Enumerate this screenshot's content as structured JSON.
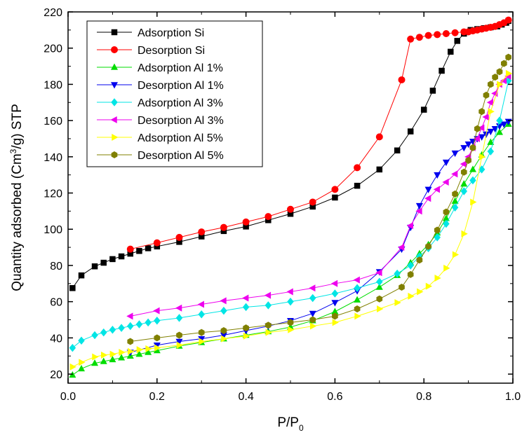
{
  "chart_data": {
    "type": "scatter",
    "title": "",
    "xlabel": {
      "main": "P/P",
      "sub": "0"
    },
    "ylabel": {
      "pre": "Quantity adsorbed (Cm",
      "sup": "3",
      "post": "/g) STP"
    },
    "xlim": [
      0.0,
      1.0
    ],
    "ylim": [
      15,
      220
    ],
    "xticks": [
      0.0,
      0.2,
      0.4,
      0.6,
      0.8,
      1.0
    ],
    "xtick_labels": [
      "0.0",
      "0.2",
      "0.4",
      "0.6",
      "0.8",
      "1.0"
    ],
    "yticks": [
      20,
      40,
      60,
      80,
      100,
      120,
      140,
      160,
      180,
      200,
      220
    ],
    "ytick_labels": [
      "20",
      "40",
      "60",
      "80",
      "100",
      "120",
      "140",
      "160",
      "180",
      "200",
      "220"
    ],
    "grid": false,
    "legend_position": "top-left",
    "series": [
      {
        "name": "Adsorption Si",
        "color": "#000000",
        "marker": "square",
        "x": [
          0.01,
          0.03,
          0.06,
          0.08,
          0.1,
          0.12,
          0.14,
          0.16,
          0.18,
          0.2,
          0.25,
          0.3,
          0.35,
          0.4,
          0.45,
          0.5,
          0.55,
          0.6,
          0.65,
          0.7,
          0.74,
          0.77,
          0.8,
          0.82,
          0.84,
          0.86,
          0.875,
          0.89,
          0.905,
          0.92,
          0.935,
          0.95,
          0.965,
          0.975,
          0.985,
          0.99
        ],
        "y": [
          67.5,
          74.5,
          79.5,
          81.5,
          83.5,
          85,
          86.5,
          88,
          89.5,
          90.5,
          93,
          96,
          99,
          101.5,
          105,
          108.5,
          112.5,
          117.5,
          124,
          133,
          143.5,
          154,
          166,
          176.5,
          187.5,
          198,
          204,
          208,
          210,
          210.5,
          211,
          211.5,
          212,
          213,
          214,
          215
        ]
      },
      {
        "name": "Desorption Si",
        "color": "#ff0000",
        "marker": "circle",
        "x": [
          0.99,
          0.98,
          0.97,
          0.96,
          0.95,
          0.94,
          0.93,
          0.92,
          0.91,
          0.9,
          0.89,
          0.87,
          0.85,
          0.83,
          0.81,
          0.79,
          0.77,
          0.75,
          0.7,
          0.65,
          0.6,
          0.55,
          0.5,
          0.45,
          0.4,
          0.35,
          0.3,
          0.25,
          0.2,
          0.14
        ],
        "y": [
          215.5,
          214,
          213,
          212,
          211.5,
          211,
          210.5,
          210,
          209.5,
          209,
          209,
          208.5,
          208,
          207.5,
          207,
          206,
          205,
          182.5,
          151,
          134,
          122,
          115,
          111,
          107,
          104,
          101,
          98.5,
          95.5,
          92.5,
          89
        ]
      },
      {
        "name": "Adsorption Al 1%",
        "color": "#00dd00",
        "marker": "triangle-up",
        "x": [
          0.01,
          0.03,
          0.06,
          0.08,
          0.1,
          0.12,
          0.14,
          0.16,
          0.18,
          0.2,
          0.25,
          0.3,
          0.35,
          0.4,
          0.45,
          0.5,
          0.55,
          0.6,
          0.65,
          0.7,
          0.74,
          0.77,
          0.79,
          0.81,
          0.83,
          0.85,
          0.87,
          0.89,
          0.91,
          0.93,
          0.95,
          0.97,
          0.99
        ],
        "y": [
          19.5,
          23,
          26,
          27,
          28,
          29,
          30,
          31,
          32,
          33,
          35.5,
          37.5,
          39.5,
          41.5,
          43.5,
          46,
          49.5,
          54.5,
          61,
          68,
          74.5,
          81.5,
          86.5,
          91.5,
          98,
          106,
          115.5,
          125,
          133,
          141,
          148,
          153.5,
          158
        ]
      },
      {
        "name": "Desorption Al 1%",
        "color": "#0000ee",
        "marker": "triangle-down",
        "x": [
          0.99,
          0.98,
          0.97,
          0.96,
          0.95,
          0.94,
          0.93,
          0.92,
          0.91,
          0.9,
          0.89,
          0.87,
          0.85,
          0.83,
          0.81,
          0.79,
          0.77,
          0.75,
          0.7,
          0.65,
          0.6,
          0.55,
          0.5,
          0.45,
          0.4,
          0.35,
          0.3,
          0.25,
          0.2,
          0.14
        ],
        "y": [
          159.5,
          158,
          157,
          155.5,
          154,
          152.5,
          151,
          150,
          148.5,
          147,
          145,
          142,
          137,
          130,
          122,
          113,
          101,
          89,
          76.5,
          66,
          59.5,
          53.5,
          49.5,
          46.5,
          44,
          41.5,
          39.5,
          38,
          36,
          32
        ]
      },
      {
        "name": "Adsorption Al 3%",
        "color": "#00e5e5",
        "marker": "diamond",
        "x": [
          0.01,
          0.03,
          0.06,
          0.08,
          0.1,
          0.12,
          0.14,
          0.16,
          0.18,
          0.2,
          0.25,
          0.3,
          0.35,
          0.4,
          0.45,
          0.5,
          0.55,
          0.6,
          0.65,
          0.7,
          0.74,
          0.77,
          0.79,
          0.81,
          0.83,
          0.85,
          0.87,
          0.89,
          0.91,
          0.93,
          0.95,
          0.97,
          0.99
        ],
        "y": [
          34.5,
          38.5,
          41.5,
          43,
          44.5,
          45.5,
          46.5,
          47.5,
          48.5,
          49.5,
          51,
          53,
          55,
          57,
          58,
          60,
          62,
          64.5,
          67.5,
          71,
          75.5,
          80,
          85,
          89.5,
          95.5,
          103,
          112,
          121,
          127,
          133,
          143,
          160,
          182
        ]
      },
      {
        "name": "Desorption Al 3%",
        "color": "#ee00ee",
        "marker": "triangle-left",
        "x": [
          0.99,
          0.98,
          0.97,
          0.96,
          0.95,
          0.94,
          0.93,
          0.92,
          0.91,
          0.9,
          0.89,
          0.87,
          0.85,
          0.83,
          0.81,
          0.79,
          0.77,
          0.75,
          0.7,
          0.65,
          0.6,
          0.55,
          0.5,
          0.45,
          0.4,
          0.35,
          0.3,
          0.25,
          0.2,
          0.14
        ],
        "y": [
          184.5,
          182,
          180,
          175,
          170,
          162,
          156,
          150,
          145,
          140,
          136,
          130.5,
          126,
          122,
          117,
          110,
          102,
          90,
          76,
          72,
          70,
          67.5,
          65.5,
          63.5,
          62,
          60.5,
          58.5,
          56.5,
          55,
          52
        ]
      },
      {
        "name": "Adsorption Al 5%",
        "color": "#ffff00",
        "marker": "triangle-right",
        "x": [
          0.01,
          0.03,
          0.06,
          0.08,
          0.1,
          0.12,
          0.14,
          0.16,
          0.18,
          0.2,
          0.25,
          0.3,
          0.35,
          0.4,
          0.45,
          0.5,
          0.55,
          0.6,
          0.65,
          0.7,
          0.74,
          0.77,
          0.79,
          0.81,
          0.83,
          0.85,
          0.87,
          0.89,
          0.91,
          0.93,
          0.95,
          0.97,
          0.99
        ],
        "y": [
          24,
          26.5,
          29.5,
          30.5,
          31,
          32,
          32.5,
          33.5,
          34,
          34.5,
          36,
          38,
          39.5,
          41,
          43,
          44.5,
          46.5,
          48.5,
          52,
          56,
          59.5,
          63,
          65.5,
          68.5,
          73,
          78.5,
          86,
          97.5,
          115,
          140,
          165,
          180,
          186
        ]
      },
      {
        "name": "Desorption Al 5%",
        "color": "#808000",
        "marker": "hexagon",
        "x": [
          0.99,
          0.98,
          0.97,
          0.96,
          0.95,
          0.94,
          0.93,
          0.92,
          0.91,
          0.9,
          0.89,
          0.87,
          0.85,
          0.83,
          0.81,
          0.79,
          0.77,
          0.75,
          0.7,
          0.65,
          0.6,
          0.55,
          0.5,
          0.45,
          0.4,
          0.35,
          0.3,
          0.25,
          0.2,
          0.14
        ],
        "y": [
          195,
          191.5,
          187,
          184,
          180,
          174,
          165,
          155.5,
          145,
          138,
          131.5,
          119.5,
          109.5,
          99.5,
          90.5,
          83,
          75,
          68,
          61.5,
          56,
          52,
          50,
          48.5,
          47,
          45.5,
          44,
          43,
          41.5,
          40,
          38
        ]
      }
    ]
  }
}
